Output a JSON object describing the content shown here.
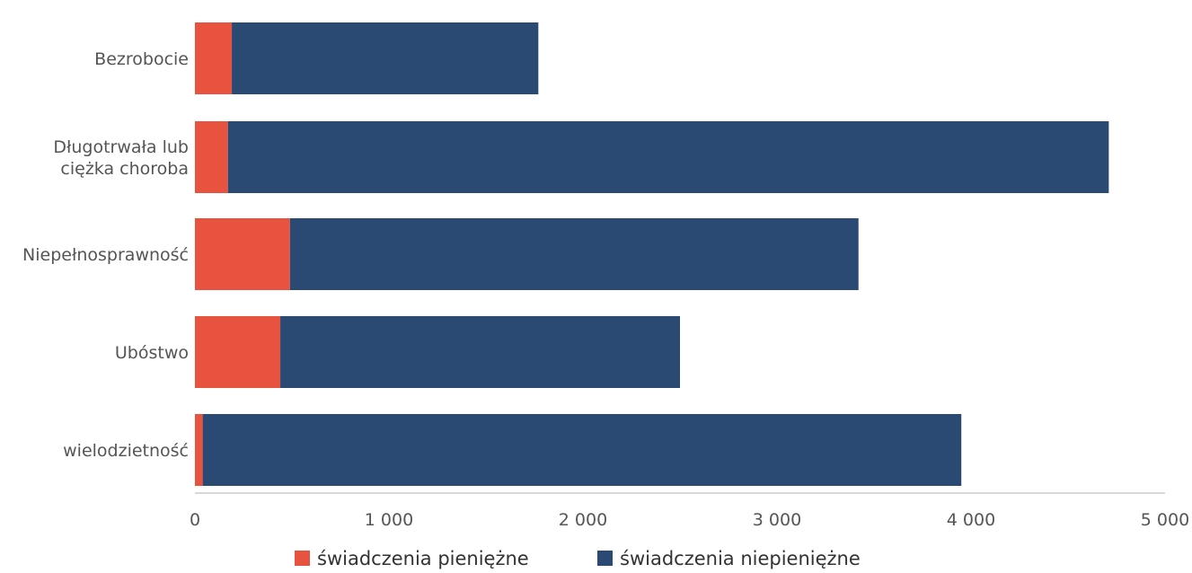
{
  "chart_data": {
    "type": "bar",
    "orientation": "horizontal",
    "stacked": true,
    "categories": [
      [
        "Bezrobocie"
      ],
      [
        "Długotrwała lub",
        "ciężka choroba"
      ],
      [
        "Niepełnosprawność"
      ],
      [
        "Ubóstwo"
      ],
      [
        "wielodzietność"
      ]
    ],
    "series": [
      {
        "name": "świadczenia pieniężne",
        "color": "#e8533f",
        "values": [
          190,
          170,
          490,
          440,
          40
        ]
      },
      {
        "name": "świadczenia niepieniężne",
        "color": "#2b4a73",
        "values": [
          1580,
          4540,
          2930,
          2060,
          3910
        ]
      }
    ],
    "xlim": [
      0,
      5000
    ],
    "xticks": [
      0,
      1000,
      2000,
      3000,
      4000,
      5000
    ],
    "xtick_labels": [
      "0",
      "1 000",
      "2 000",
      "3 000",
      "4 000",
      "5 000"
    ],
    "grid": false,
    "legend_position": "bottom"
  }
}
